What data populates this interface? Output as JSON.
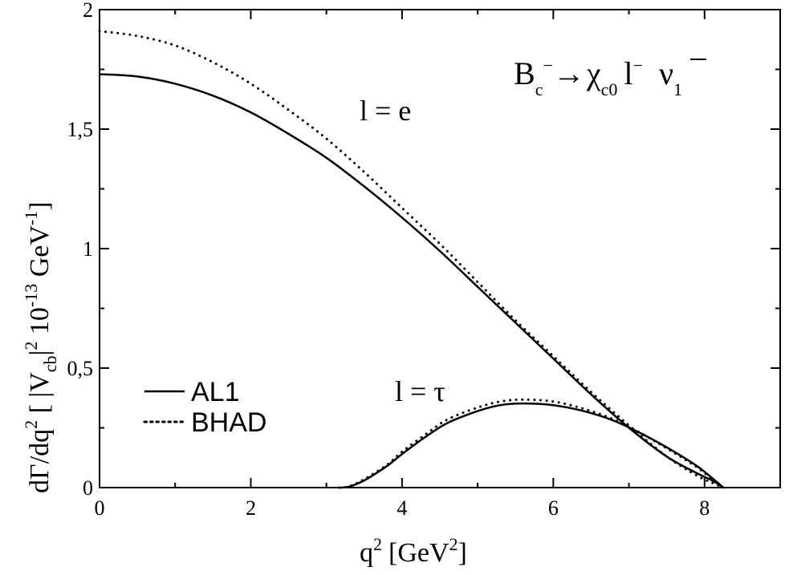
{
  "chart_data": {
    "type": "line",
    "title_parts": {
      "B": "B",
      "c": "c",
      "minus1": "−",
      "arrow": "→",
      "chi": "χ",
      "c0": "c0",
      "l": "l",
      "minus2": "−",
      "nu": "ν",
      "one": "1"
    },
    "xlabel_parts": {
      "q": "q",
      "two": "2",
      "unit_open": "[GeV",
      "unit_two": "2",
      "unit_close": "]"
    },
    "ylabel_parts": {
      "a": "dΓ/dq",
      "a_sup": "2",
      "b": " [ |V",
      "b_sub": "cb",
      "c": "|",
      "c_sup": "2",
      "d": " 10",
      "d_sup": "-13",
      "e": " GeV",
      "e_sup": "-1",
      "f": "]"
    },
    "xlim": [
      0,
      9
    ],
    "ylim": [
      0,
      2
    ],
    "x_ticks": [
      "0",
      "2",
      "4",
      "6",
      "8"
    ],
    "y_ticks": [
      "0",
      "0,5",
      "1",
      "1,5",
      "2"
    ],
    "legend_position": "lower-left",
    "annotations": {
      "e": "l = e",
      "tau": "l = τ"
    },
    "series": [
      {
        "name": "AL1",
        "style": "solid",
        "group": "e",
        "x": [
          0,
          0.5,
          1,
          1.5,
          2,
          2.5,
          3,
          3.5,
          4,
          4.5,
          5,
          5.5,
          6,
          6.5,
          7,
          7.5,
          7.9,
          8.1,
          8.25
        ],
        "y": [
          1.73,
          1.72,
          1.69,
          1.64,
          1.57,
          1.48,
          1.38,
          1.26,
          1.13,
          0.99,
          0.84,
          0.69,
          0.54,
          0.39,
          0.25,
          0.13,
          0.06,
          0.03,
          0.0
        ]
      },
      {
        "name": "BHAD",
        "style": "dotted",
        "group": "e",
        "x": [
          0,
          0.5,
          1,
          1.5,
          2,
          2.5,
          3,
          3.5,
          4,
          4.5,
          5,
          5.5,
          6,
          6.5,
          7,
          7.5,
          7.9,
          8.1,
          8.25
        ],
        "y": [
          1.91,
          1.89,
          1.85,
          1.78,
          1.69,
          1.58,
          1.46,
          1.32,
          1.17,
          1.02,
          0.86,
          0.7,
          0.55,
          0.4,
          0.26,
          0.13,
          0.05,
          0.02,
          0.0
        ]
      },
      {
        "name": "AL1",
        "style": "solid",
        "group": "tau",
        "x": [
          3.17,
          3.3,
          3.5,
          3.8,
          4.0,
          4.3,
          4.6,
          5.0,
          5.3,
          5.6,
          6.0,
          6.4,
          6.8,
          7.2,
          7.6,
          7.9,
          8.1,
          8.25
        ],
        "y": [
          0.0,
          0.004,
          0.03,
          0.09,
          0.14,
          0.21,
          0.27,
          0.32,
          0.345,
          0.352,
          0.345,
          0.32,
          0.28,
          0.22,
          0.15,
          0.09,
          0.04,
          0.0
        ]
      },
      {
        "name": "BHAD",
        "style": "dotted",
        "group": "tau",
        "x": [
          3.17,
          3.3,
          3.5,
          3.8,
          4.0,
          4.3,
          4.6,
          5.0,
          5.3,
          5.6,
          6.0,
          6.4,
          6.8,
          7.2,
          7.6,
          7.9,
          8.1,
          8.25
        ],
        "y": [
          0.0,
          0.005,
          0.035,
          0.095,
          0.15,
          0.22,
          0.285,
          0.335,
          0.36,
          0.368,
          0.36,
          0.33,
          0.285,
          0.22,
          0.145,
          0.085,
          0.035,
          0.0
        ]
      }
    ]
  }
}
